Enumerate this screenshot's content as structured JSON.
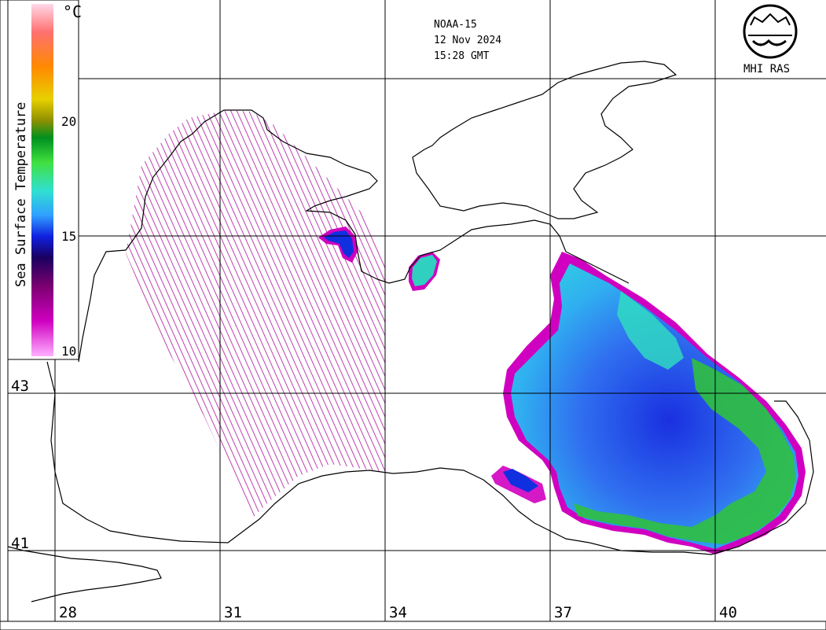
{
  "header": {
    "satellite": "NOAA-15",
    "date": "12 Nov 2024",
    "time": "15:28 GMT"
  },
  "logo": {
    "text": "MHI RAS"
  },
  "colorbar": {
    "title": "Sea Surface Temperature",
    "unit": "°C",
    "ticks": [
      "20",
      "15",
      "10"
    ],
    "colors": [
      "#ffd0e0",
      "#ff6060",
      "#ff8a00",
      "#e0d000",
      "#909000",
      "#00a020",
      "#40e040",
      "#30e0d0",
      "#30a0ff",
      "#1020e0",
      "#20006a",
      "#6a0060",
      "#c000c0",
      "#ffa0ff"
    ]
  },
  "grid": {
    "lon_labels": [
      "28",
      "31",
      "34",
      "37",
      "40"
    ],
    "lat_labels": [
      "43",
      "41"
    ]
  },
  "colors": {
    "warm_green": "#20c040",
    "cyan": "#30e0d0",
    "blue": "#2060f0",
    "deep_blue": "#1020d0",
    "magenta": "#d000c0",
    "coast": "#000000"
  }
}
